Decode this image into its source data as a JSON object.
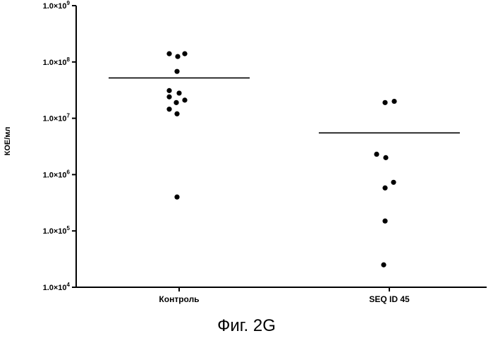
{
  "caption": "Фиг. 2G",
  "chart_data": {
    "type": "scatter",
    "title": "",
    "xlabel": "",
    "ylabel": "КОЕ/мл",
    "yscale": "log",
    "ylim": [
      10000,
      1000000000
    ],
    "yticks": [
      {
        "value": 10000,
        "mantissa": "1.0×10",
        "exp": "4"
      },
      {
        "value": 100000,
        "mantissa": "1.0×10",
        "exp": "5"
      },
      {
        "value": 1000000,
        "mantissa": "1.0×10",
        "exp": "6"
      },
      {
        "value": 10000000,
        "mantissa": "1.0×10",
        "exp": "7"
      },
      {
        "value": 100000000,
        "mantissa": "1.0×10",
        "exp": "8"
      },
      {
        "value": 1000000000,
        "mantissa": "1.0×10",
        "exp": "9"
      }
    ],
    "categories": [
      "Контроль",
      "SEQ ID 45"
    ],
    "series": [
      {
        "category": "Контроль",
        "mean": 52000000,
        "points": [
          140000000,
          125000000,
          140000000,
          68000000,
          31000000,
          28000000,
          24000000,
          21000000,
          19000000,
          14500000,
          12000000,
          400000
        ]
      },
      {
        "category": "SEQ ID 45",
        "mean": 5500000,
        "points": [
          19000000,
          20000000,
          2300000,
          2000000,
          730000,
          580000,
          150000,
          25000
        ]
      }
    ],
    "grid": false,
    "legend": "none"
  }
}
